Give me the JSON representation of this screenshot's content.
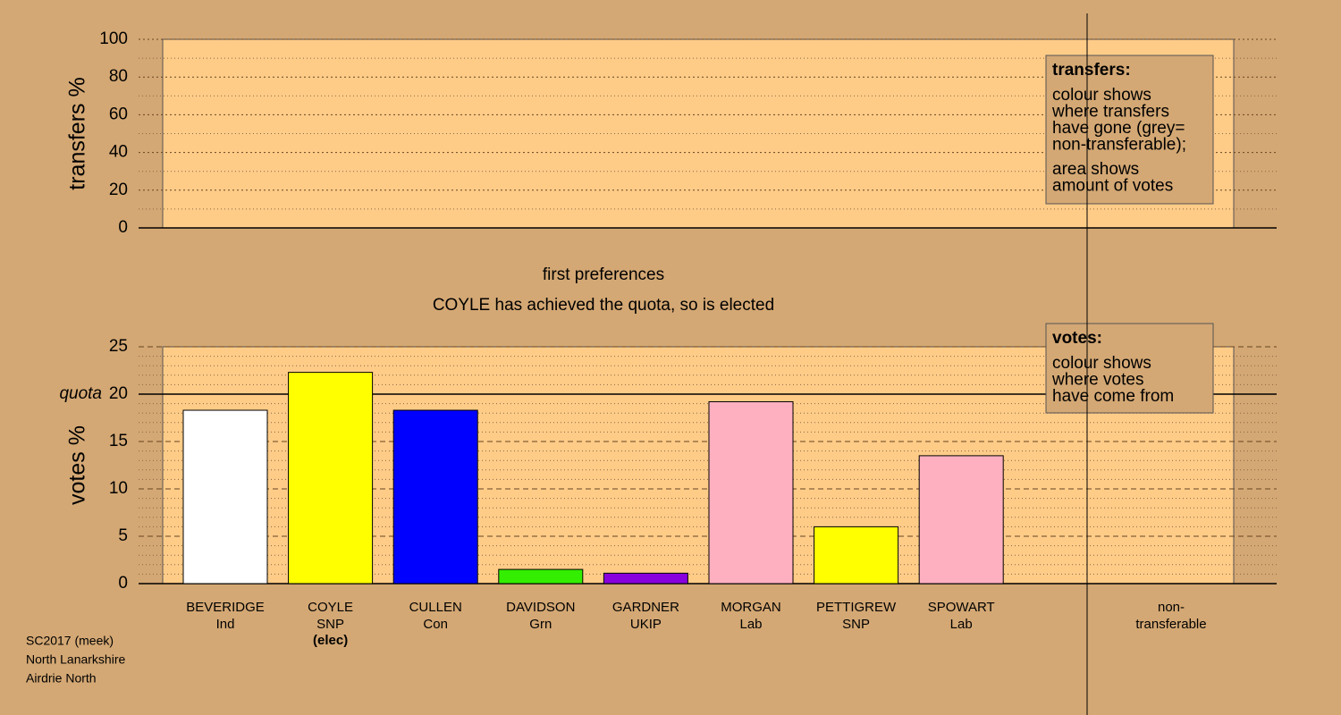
{
  "chart_data": [
    {
      "type": "bar",
      "ylabel": "transfers %",
      "ylim": [
        0,
        100
      ],
      "yticks": [
        0,
        20,
        40,
        60,
        80,
        100
      ],
      "minor_yticks": [
        10,
        30,
        50,
        70,
        90
      ],
      "legend": {
        "title": "transfers:",
        "lines": [
          "colour shows",
          "where transfers",
          "have gone (grey=",
          "non-transferable);",
          "area shows",
          "amount of votes"
        ]
      }
    },
    {
      "type": "bar",
      "title": "first preferences",
      "subtitle": "COYLE has achieved the quota, so is elected",
      "ylabel": "votes %",
      "ylim": [
        0,
        25
      ],
      "yticks": [
        0,
        5,
        10,
        15,
        20,
        25
      ],
      "minor_yticks": [
        1,
        2,
        3,
        4,
        6,
        7,
        8,
        9,
        11,
        12,
        13,
        14,
        16,
        17,
        18,
        19,
        21,
        22,
        23,
        24
      ],
      "quota": {
        "value": 20,
        "label": "quota"
      },
      "categories": [
        "BEVERIDGE",
        "COYLE",
        "CULLEN",
        "DAVIDSON",
        "GARDNER",
        "MORGAN",
        "PETTIGREW",
        "SPOWART",
        "non-"
      ],
      "parties": [
        "Ind",
        "SNP",
        "Con",
        "Grn",
        "UKIP",
        "Lab",
        "SNP",
        "Lab",
        "transferable"
      ],
      "notes": [
        null,
        "(elec)",
        null,
        null,
        null,
        null,
        null,
        null,
        null
      ],
      "values": [
        18.3,
        22.3,
        18.3,
        1.5,
        1.1,
        19.2,
        6.0,
        13.5,
        null
      ],
      "colors": [
        "#ffffff",
        "#ffff00",
        "#0000ff",
        "#33ee00",
        "#8800dd",
        "#ffb0c0",
        "#ffff00",
        "#ffb0c0",
        null
      ],
      "legend": {
        "title": "votes:",
        "lines": [
          "colour shows",
          "where votes",
          "have come from"
        ]
      }
    }
  ],
  "footer": [
    "SC2017 (meek)",
    "North Lanarkshire",
    "Airdrie North"
  ]
}
